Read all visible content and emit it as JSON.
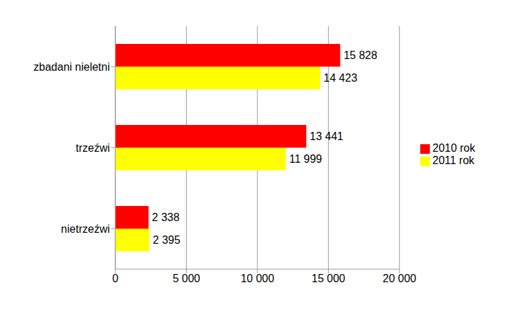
{
  "chart_data": {
    "type": "bar",
    "orientation": "horizontal",
    "categories": [
      "zbadani nieletni",
      "trzeźwi",
      "nietrzeźwi"
    ],
    "series": [
      {
        "name": "2010 rok",
        "color": "#ff0000",
        "values": [
          15828,
          13441,
          2338
        ],
        "value_labels": [
          "15 828",
          "13 441",
          "2 338"
        ]
      },
      {
        "name": "2011 rok",
        "color": "#ffff00",
        "values": [
          14423,
          11999,
          2395
        ],
        "value_labels": [
          "14 423",
          "11 999",
          "2 395"
        ]
      }
    ],
    "xlim": [
      0,
      20000
    ],
    "xticks": [
      0,
      {
        "value": 5000,
        "label": "5 000"
      },
      {
        "value": 10000,
        "label": "10 000"
      },
      {
        "value": 15000,
        "label": "15 000"
      },
      {
        "value": 20000,
        "label": "20 000"
      }
    ],
    "grid": true,
    "data_labels": true,
    "legend": "right"
  }
}
